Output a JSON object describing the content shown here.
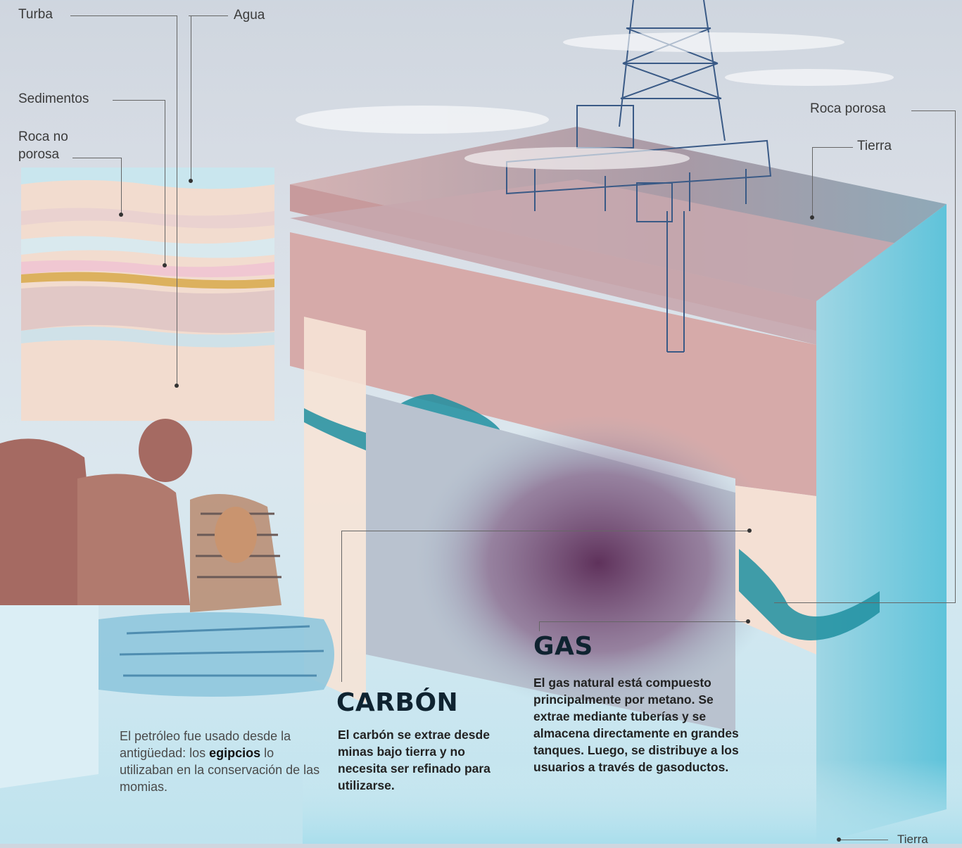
{
  "colors": {
    "sky": "#d3d9e2",
    "earth_layer": "#c9a7a8",
    "strata_panel": "#f3ddd2",
    "water": "#bfe6f0",
    "coal_teal": "#1e8fa0",
    "gas_purple": "#5a2a55",
    "heading": "#0f2330"
  },
  "labels": {
    "turba": "Turba",
    "agua": "Agua",
    "sedimentos": "Sedimentos",
    "roca_no_porosa_1": "Roca no",
    "roca_no_porosa_2": "porosa",
    "roca_porosa": "Roca porosa",
    "tierra_top": "Tierra",
    "tierra_bottom": "Tierra"
  },
  "icons": [
    "oil-rig-icon",
    "egyptian-mask-icon",
    "mummy-icon"
  ],
  "egypt_note": {
    "part1": "El petróleo fue usado desde la antigüedad: los ",
    "bold": "egipcios",
    "part2": " lo utilizaban en la conservación de las momias."
  },
  "carbon": {
    "title": "CARBÓN",
    "text": "El carbón se extrae desde minas bajo tierra y no necesita ser refinado para utilizarse."
  },
  "gas": {
    "title": "GAS",
    "text": "El gas natural está compuesto principalmente por metano. Se extrae mediante tuberías y se almacena directamente en grandes tanques. Luego, se distribuye a los usuarios a través de gasoductos."
  }
}
